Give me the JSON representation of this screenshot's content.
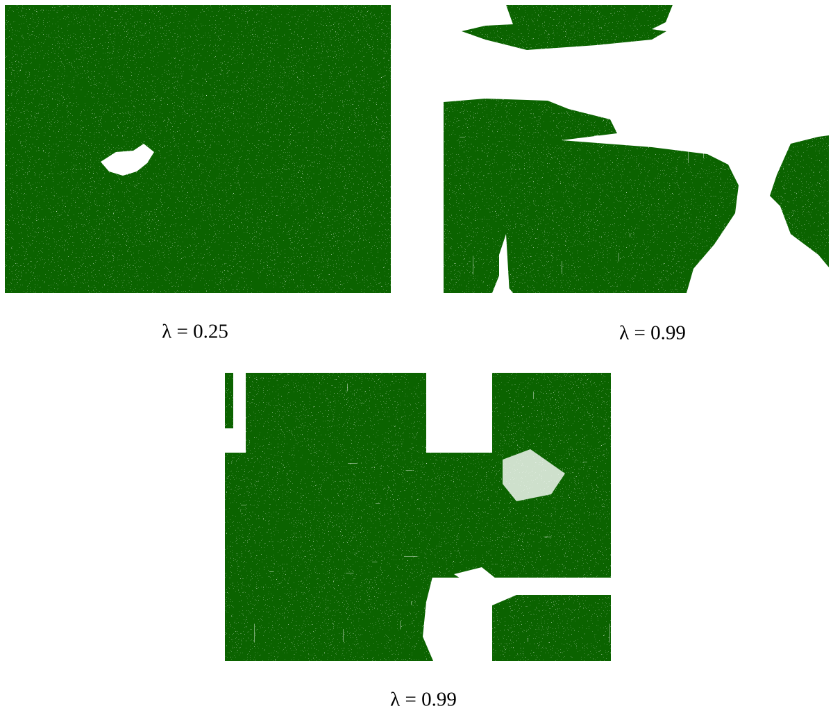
{
  "panels": [
    {
      "caption": "λ = 0.25"
    },
    {
      "caption": "λ = 0.99"
    },
    {
      "caption": "λ = 0.99"
    }
  ]
}
